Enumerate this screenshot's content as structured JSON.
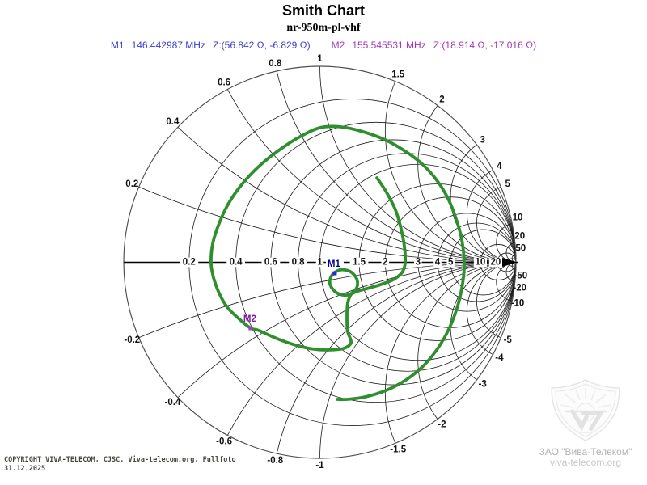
{
  "header": {
    "title": "Smith Chart",
    "subtitle": "nr-950m-pl-vhf"
  },
  "markers_readout": {
    "m1": {
      "name": "M1",
      "frequency": "146.442987 MHz",
      "impedance": "Z:(56.842 Ω, -6.829 Ω)",
      "color": "#3d3dd2"
    },
    "m2": {
      "name": "M2",
      "frequency": "155.545531 MHz",
      "impedance": "Z:(18.914 Ω, -17.016 Ω)",
      "color": "#a43ab8"
    }
  },
  "chart_data": {
    "type": "smith",
    "title": "Smith Chart",
    "description": "S11 impedance sweep spiral on a normalized impedance Smith chart",
    "grid_color": "#1a1a1a",
    "boundary_color": "#4d4d4d",
    "resistance_circles": [
      {
        "r": 0.2,
        "label": "0.2"
      },
      {
        "r": 0.4,
        "label": "0.4"
      },
      {
        "r": 0.6,
        "label": "0.6"
      },
      {
        "r": 0.8,
        "label": "0.8"
      },
      {
        "r": 1,
        "label": "1"
      },
      {
        "r": 1.5,
        "label": "1.5"
      },
      {
        "r": 2,
        "label": "2"
      },
      {
        "r": 3,
        "label": "3"
      },
      {
        "r": 4,
        "label": "4"
      },
      {
        "r": 5,
        "label": "5"
      },
      {
        "r": 10,
        "label": "10"
      },
      {
        "r": 20,
        "label": "20"
      },
      {
        "r": 50,
        "label": ""
      }
    ],
    "reactance_arcs": [
      {
        "x": 0.2,
        "label": "0.2"
      },
      {
        "x": 0.4,
        "label": "0.4"
      },
      {
        "x": 0.6,
        "label": "0.6"
      },
      {
        "x": 0.8,
        "label": "0.8"
      },
      {
        "x": 1,
        "label": "1"
      },
      {
        "x": 1.5,
        "label": "1.5"
      },
      {
        "x": 2,
        "label": "2"
      },
      {
        "x": 3,
        "label": "3"
      },
      {
        "x": 4,
        "label": "4"
      },
      {
        "x": 5,
        "label": "5"
      },
      {
        "x": 10,
        "label": "10"
      },
      {
        "x": 20,
        "label": "20"
      },
      {
        "x": 50,
        "label": "50"
      },
      {
        "x": -0.2,
        "label": "-0.2"
      },
      {
        "x": -0.4,
        "label": "-0.4"
      },
      {
        "x": -0.6,
        "label": "-0.6"
      },
      {
        "x": -0.8,
        "label": "-0.8"
      },
      {
        "x": -1,
        "label": "-1"
      },
      {
        "x": -1.5,
        "label": "-1.5"
      },
      {
        "x": -2,
        "label": "-2"
      },
      {
        "x": -3,
        "label": "-3"
      },
      {
        "x": -4,
        "label": "-4"
      },
      {
        "x": -5,
        "label": "-5"
      },
      {
        "x": -10,
        "label": "-10"
      },
      {
        "x": -20,
        "label": "-20"
      },
      {
        "x": -50,
        "label": "-50"
      }
    ],
    "trace": {
      "color": "#2f8f2f",
      "gamma_points": [
        [
          0.291,
          0.431
        ],
        [
          0.34,
          0.357
        ],
        [
          0.386,
          0.266
        ],
        [
          0.414,
          0.171
        ],
        [
          0.431,
          0.08
        ],
        [
          0.435,
          -0.002
        ],
        [
          0.419,
          -0.052
        ],
        [
          0.373,
          -0.089
        ],
        [
          0.311,
          -0.113
        ],
        [
          0.254,
          -0.13
        ],
        [
          0.196,
          -0.146
        ],
        [
          0.138,
          -0.167
        ],
        [
          0.085,
          -0.155
        ],
        [
          0.052,
          -0.113
        ],
        [
          0.06,
          -0.068
        ],
        [
          0.101,
          -0.039
        ],
        [
          0.155,
          -0.047
        ],
        [
          0.188,
          -0.085
        ],
        [
          0.188,
          -0.13
        ],
        [
          0.159,
          -0.163
        ],
        [
          0.142,
          -0.208
        ],
        [
          0.138,
          -0.282
        ],
        [
          0.142,
          -0.353
        ],
        [
          0.159,
          -0.41
        ],
        [
          0.122,
          -0.439
        ],
        [
          0.052,
          -0.447
        ],
        [
          -0.031,
          -0.443
        ],
        [
          -0.122,
          -0.423
        ],
        [
          -0.217,
          -0.39
        ],
        [
          -0.311,
          -0.348
        ],
        [
          -0.353,
          -0.336
        ],
        [
          -0.414,
          -0.287
        ],
        [
          -0.472,
          -0.229
        ],
        [
          -0.513,
          -0.159
        ],
        [
          -0.542,
          -0.08
        ],
        [
          -0.555,
          -0.002
        ],
        [
          -0.546,
          0.097
        ],
        [
          -0.513,
          0.2
        ],
        [
          -0.464,
          0.303
        ],
        [
          -0.394,
          0.402
        ],
        [
          -0.307,
          0.493
        ],
        [
          -0.204,
          0.575
        ],
        [
          -0.101,
          0.641
        ],
        [
          0.002,
          0.687
        ],
        [
          0.105,
          0.691
        ],
        [
          0.221,
          0.666
        ],
        [
          0.332,
          0.625
        ],
        [
          0.435,
          0.567
        ],
        [
          0.522,
          0.501
        ],
        [
          0.596,
          0.419
        ],
        [
          0.654,
          0.324
        ],
        [
          0.695,
          0.221
        ],
        [
          0.724,
          0.113
        ],
        [
          0.736,
          -0.002
        ],
        [
          0.728,
          -0.109
        ],
        [
          0.703,
          -0.221
        ],
        [
          0.662,
          -0.332
        ],
        [
          0.604,
          -0.435
        ],
        [
          0.53,
          -0.526
        ],
        [
          0.439,
          -0.6
        ],
        [
          0.336,
          -0.654
        ],
        [
          0.229,
          -0.687
        ],
        [
          0.138,
          -0.699
        ],
        [
          0.089,
          -0.699
        ]
      ]
    },
    "markers": [
      {
        "label": "M1",
        "gamma": [
          0.076,
          -0.056
        ],
        "dot_color": "#2a2ad8",
        "label_color": "#000099",
        "frequency_mhz": 146.442987,
        "impedance_ohm": [
          56.842,
          -6.829
        ]
      },
      {
        "label": "M2",
        "gamma": [
          -0.353,
          -0.336
        ],
        "dot_color": "#a040c0",
        "label_color": "#7c1fa2",
        "frequency_mhz": 155.545531,
        "impedance_ohm": [
          18.914,
          -17.016
        ]
      }
    ]
  },
  "footer": {
    "copyright_line1": "COPYRIGHT VIVA-TELECOM, CJSC. Viva-telecom.org. Fullfoto",
    "copyright_line2": "31.12.2025"
  },
  "logo": {
    "company": "ЗАО \"Вива-Телеком\"",
    "website": "viva-telecom.org"
  }
}
